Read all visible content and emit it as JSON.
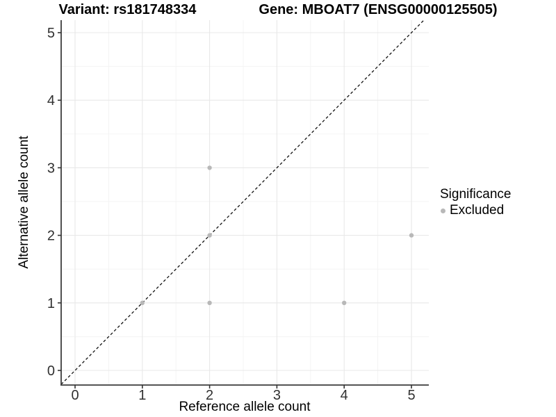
{
  "header": {
    "variant_title": "Variant: rs181748334",
    "gene_title": "Gene: MBOAT7 (ENSG00000125505)"
  },
  "chart_data": {
    "type": "scatter",
    "title": "Variant: rs181748334  /  Gene: MBOAT7 (ENSG00000125505)",
    "xlabel": "Reference allele count",
    "ylabel": "Alternative allele count",
    "xlim": [
      -0.25,
      5.25
    ],
    "ylim": [
      -0.25,
      5.25
    ],
    "xticks": [
      0,
      1,
      2,
      3,
      4,
      5
    ],
    "yticks": [
      0,
      1,
      2,
      3,
      4,
      5
    ],
    "grid": {
      "major": true,
      "minor": true
    },
    "identity_line": {
      "style": "dashed",
      "slope": 1,
      "intercept": 0,
      "color": "#111111"
    },
    "series": [
      {
        "name": "Excluded",
        "color": "#b8b8b8",
        "points": [
          [
            1,
            1
          ],
          [
            2,
            1
          ],
          [
            2,
            2
          ],
          [
            2,
            3
          ],
          [
            4,
            1
          ],
          [
            5,
            2
          ]
        ]
      }
    ],
    "legend": {
      "title": "Significance",
      "position": "right",
      "items": [
        {
          "label": "Excluded",
          "color": "#b8b8b8"
        }
      ]
    }
  },
  "colors": {
    "background": "#ffffff",
    "grid_major": "#e8e8e8",
    "grid_minor": "#f3f3f3",
    "axis_line": "#3c3c3c",
    "tick_mark": "#333333",
    "tick_label": "#303030",
    "text": "#000000"
  }
}
